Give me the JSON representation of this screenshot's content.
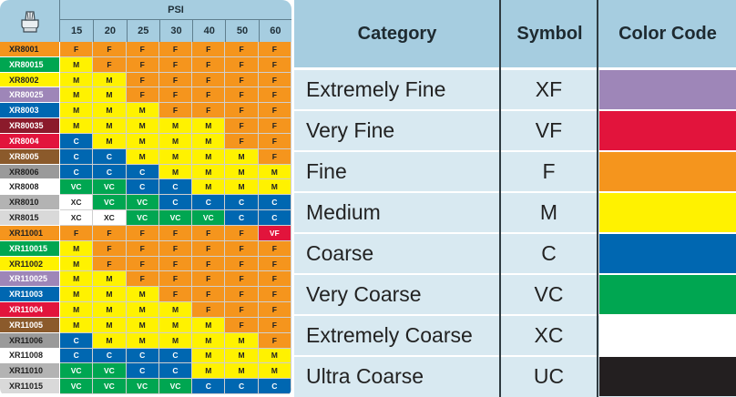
{
  "nozzle_chart": {
    "pressure_header": "PSI",
    "pressures": [
      "15",
      "20",
      "25",
      "30",
      "40",
      "50",
      "60"
    ],
    "rows": [
      {
        "nozzle": "XR8001",
        "bg": "#f5951d",
        "fg": "#222222",
        "ratings": [
          "F",
          "F",
          "F",
          "F",
          "F",
          "F",
          "F"
        ]
      },
      {
        "nozzle": "XR80015",
        "bg": "#00a651",
        "fg": "#ffffff",
        "ratings": [
          "M",
          "F",
          "F",
          "F",
          "F",
          "F",
          "F"
        ]
      },
      {
        "nozzle": "XR8002",
        "bg": "#fff200",
        "fg": "#222222",
        "ratings": [
          "M",
          "M",
          "F",
          "F",
          "F",
          "F",
          "F"
        ]
      },
      {
        "nozzle": "XR80025",
        "bg": "#9e86b8",
        "fg": "#ffffff",
        "ratings": [
          "M",
          "M",
          "F",
          "F",
          "F",
          "F",
          "F"
        ]
      },
      {
        "nozzle": "XR8003",
        "bg": "#0067b1",
        "fg": "#ffffff",
        "ratings": [
          "M",
          "M",
          "M",
          "F",
          "F",
          "F",
          "F"
        ]
      },
      {
        "nozzle": "XR80035",
        "bg": "#8b1a2b",
        "fg": "#ffffff",
        "ratings": [
          "M",
          "M",
          "M",
          "M",
          "M",
          "F",
          "F"
        ]
      },
      {
        "nozzle": "XR8004",
        "bg": "#e2143c",
        "fg": "#ffffff",
        "ratings": [
          "C",
          "M",
          "M",
          "M",
          "M",
          "F",
          "F"
        ]
      },
      {
        "nozzle": "XR8005",
        "bg": "#8b5a2b",
        "fg": "#ffffff",
        "ratings": [
          "C",
          "C",
          "M",
          "M",
          "M",
          "M",
          "F"
        ]
      },
      {
        "nozzle": "XR8006",
        "bg": "#9a9a9a",
        "fg": "#222222",
        "ratings": [
          "C",
          "C",
          "C",
          "M",
          "M",
          "M",
          "M"
        ]
      },
      {
        "nozzle": "XR8008",
        "bg": "#ffffff",
        "fg": "#222222",
        "ratings": [
          "VC",
          "VC",
          "C",
          "C",
          "M",
          "M",
          "M"
        ]
      },
      {
        "nozzle": "XR8010",
        "bg": "#b3b3b3",
        "fg": "#222222",
        "ratings": [
          "XC",
          "VC",
          "VC",
          "C",
          "C",
          "C",
          "C"
        ]
      },
      {
        "nozzle": "XR8015",
        "bg": "#d9d9d9",
        "fg": "#222222",
        "ratings": [
          "XC",
          "XC",
          "VC",
          "VC",
          "VC",
          "C",
          "C"
        ]
      },
      {
        "nozzle": "XR11001",
        "bg": "#f5951d",
        "fg": "#222222",
        "ratings": [
          "F",
          "F",
          "F",
          "F",
          "F",
          "F",
          "VF"
        ]
      },
      {
        "nozzle": "XR110015",
        "bg": "#00a651",
        "fg": "#ffffff",
        "ratings": [
          "M",
          "F",
          "F",
          "F",
          "F",
          "F",
          "F"
        ]
      },
      {
        "nozzle": "XR11002",
        "bg": "#fff200",
        "fg": "#222222",
        "ratings": [
          "M",
          "F",
          "F",
          "F",
          "F",
          "F",
          "F"
        ]
      },
      {
        "nozzle": "XR110025",
        "bg": "#9e86b8",
        "fg": "#ffffff",
        "ratings": [
          "M",
          "M",
          "F",
          "F",
          "F",
          "F",
          "F"
        ]
      },
      {
        "nozzle": "XR11003",
        "bg": "#0067b1",
        "fg": "#ffffff",
        "ratings": [
          "M",
          "M",
          "M",
          "F",
          "F",
          "F",
          "F"
        ]
      },
      {
        "nozzle": "XR11004",
        "bg": "#e2143c",
        "fg": "#ffffff",
        "ratings": [
          "M",
          "M",
          "M",
          "M",
          "F",
          "F",
          "F"
        ]
      },
      {
        "nozzle": "XR11005",
        "bg": "#8b5a2b",
        "fg": "#ffffff",
        "ratings": [
          "M",
          "M",
          "M",
          "M",
          "M",
          "F",
          "F"
        ]
      },
      {
        "nozzle": "XR11006",
        "bg": "#9a9a9a",
        "fg": "#222222",
        "ratings": [
          "C",
          "M",
          "M",
          "M",
          "M",
          "M",
          "F"
        ]
      },
      {
        "nozzle": "XR11008",
        "bg": "#ffffff",
        "fg": "#222222",
        "ratings": [
          "C",
          "C",
          "C",
          "C",
          "M",
          "M",
          "M"
        ]
      },
      {
        "nozzle": "XR11010",
        "bg": "#b3b3b3",
        "fg": "#222222",
        "ratings": [
          "VC",
          "VC",
          "C",
          "C",
          "M",
          "M",
          "M"
        ]
      },
      {
        "nozzle": "XR11015",
        "bg": "#d9d9d9",
        "fg": "#222222",
        "ratings": [
          "VC",
          "VC",
          "VC",
          "VC",
          "C",
          "C",
          "C"
        ]
      }
    ]
  },
  "legend": {
    "headers": {
      "category": "Category",
      "symbol": "Symbol",
      "color": "Color Code"
    },
    "items": [
      {
        "category": "Extremely Fine",
        "symbol": "XF",
        "color": "#9e86b8"
      },
      {
        "category": "Very Fine",
        "symbol": "VF",
        "color": "#e2143c"
      },
      {
        "category": "Fine",
        "symbol": "F",
        "color": "#f5951d"
      },
      {
        "category": "Medium",
        "symbol": "M",
        "color": "#fff200"
      },
      {
        "category": "Coarse",
        "symbol": "C",
        "color": "#0067b1"
      },
      {
        "category": "Very Coarse",
        "symbol": "VC",
        "color": "#00a651"
      },
      {
        "category": "Extremely Coarse",
        "symbol": "XC",
        "color": "#ffffff"
      },
      {
        "category": "Ultra Coarse",
        "symbol": "UC",
        "color": "#231f20"
      }
    ]
  },
  "colors": {
    "header_bg": "#a6cde0",
    "legend_bg": "#d8e9f1",
    "divider": "#2e3a40"
  },
  "icons": {
    "logo": "nozzle-tip-icon"
  }
}
